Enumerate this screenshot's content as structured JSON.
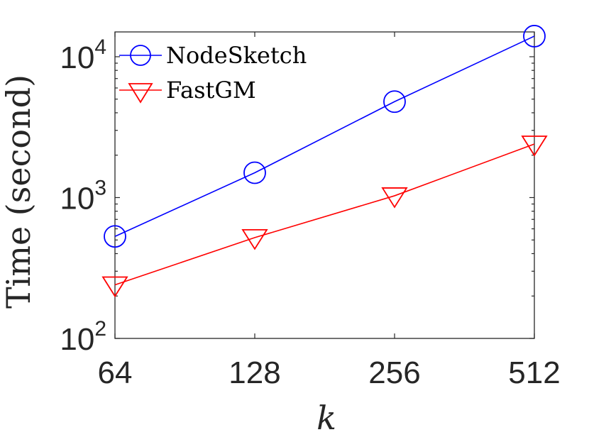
{
  "chart_data": {
    "type": "line",
    "x": [
      64,
      128,
      256,
      512
    ],
    "x_tick_labels": [
      "64",
      "128",
      "256",
      "512"
    ],
    "x_scale": "log2",
    "y_scale": "log10",
    "ylim": [
      100,
      15000
    ],
    "y_ticks": [
      {
        "value": 100,
        "base": "10",
        "exp": "2"
      },
      {
        "value": 1000,
        "base": "10",
        "exp": "3"
      },
      {
        "value": 10000,
        "base": "10",
        "exp": "4"
      }
    ],
    "xlabel": "k",
    "ylabel": "Time (second)",
    "legend_position": "top-left",
    "grid": false,
    "series": [
      {
        "name": "NodeSketch",
        "color": "#0000ff",
        "marker": "circle",
        "values": [
          530,
          1500,
          4800,
          14000
        ]
      },
      {
        "name": "FastGM",
        "color": "#ff0000",
        "marker": "triangle-down",
        "values": [
          240,
          520,
          1030,
          2400
        ]
      }
    ]
  }
}
